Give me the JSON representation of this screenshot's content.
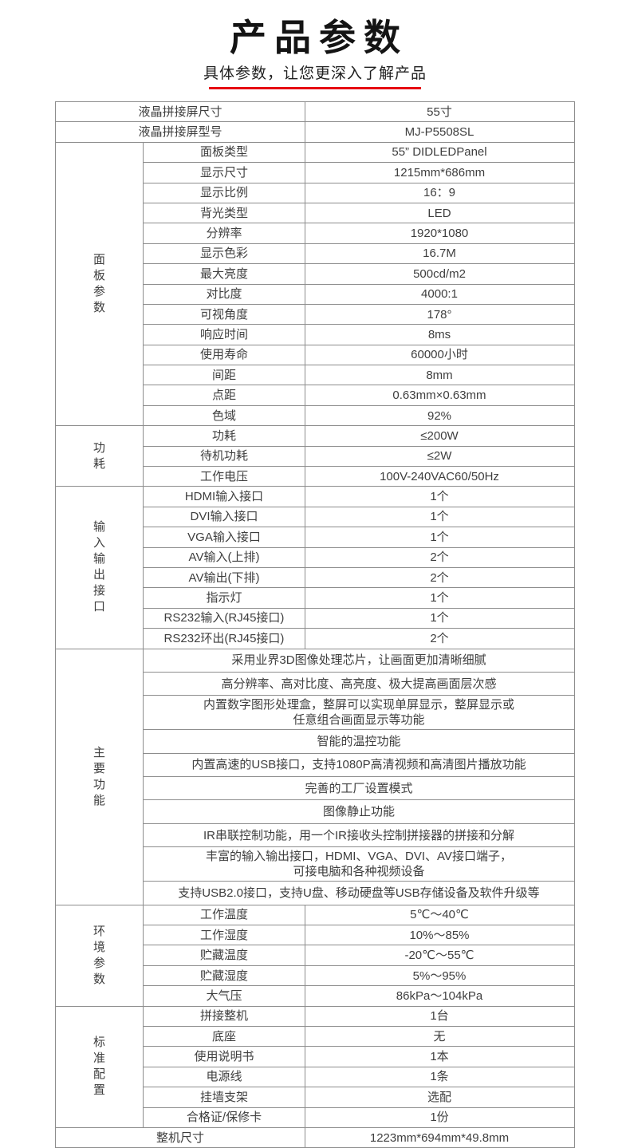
{
  "header": {
    "title": "产品参数",
    "subtitle": "具体参数，让您更深入了解产品",
    "underline_color": "#e60012"
  },
  "spec_table": {
    "border_color": "#8d8d8d",
    "text_color": "#3e3e3e",
    "top_rows": [
      {
        "label": "液晶拼接屏尺寸",
        "value": "55寸"
      },
      {
        "label": "液晶拼接屏型号",
        "value": "MJ-P5508SL"
      }
    ],
    "groups": [
      {
        "name": "面板参数",
        "rows": [
          {
            "label": "面板类型",
            "value": "55” DIDLEDPanel"
          },
          {
            "label": "显示尺寸",
            "value": "1215mm*686mm"
          },
          {
            "label": "显示比例",
            "value": "16：9"
          },
          {
            "label": "背光类型",
            "value": "LED"
          },
          {
            "label": "分辨率",
            "value": "1920*1080"
          },
          {
            "label": "显示色彩",
            "value": "16.7M"
          },
          {
            "label": "最大亮度",
            "value": "500cd/m2"
          },
          {
            "label": "对比度",
            "value": "4000:1"
          },
          {
            "label": "可视角度",
            "value": "178°"
          },
          {
            "label": "响应时间",
            "value": "8ms"
          },
          {
            "label": "使用寿命",
            "value": "60000小时"
          },
          {
            "label": "间距",
            "value": "8mm"
          },
          {
            "label": "点距",
            "value": "0.63mm×0.63mm"
          },
          {
            "label": "色域",
            "value": "92%"
          }
        ]
      },
      {
        "name": "功耗",
        "rows": [
          {
            "label": "功耗",
            "value": "≤200W"
          },
          {
            "label": "待机功耗",
            "value": "≤2W"
          },
          {
            "label": "工作电压",
            "value": "100V-240VAC60/50Hz"
          }
        ]
      },
      {
        "name": "输入输出接口",
        "rows": [
          {
            "label": "HDMI输入接口",
            "value": "1个"
          },
          {
            "label": "DVI输入接口",
            "value": "1个"
          },
          {
            "label": "VGA输入接口",
            "value": "1个"
          },
          {
            "label": "AV输入(上排)",
            "value": "2个"
          },
          {
            "label": "AV输出(下排)",
            "value": "2个"
          },
          {
            "label": "指示灯",
            "value": "1个"
          },
          {
            "label": "RS232输入(RJ45接口)",
            "value": "1个"
          },
          {
            "label": "RS232环出(RJ45接口)",
            "value": "2个"
          }
        ]
      },
      {
        "name": "主要功能",
        "features": [
          "采用业界3D图像处理芯片，让画面更加清晰细腻",
          "高分辨率、高对比度、高亮度、极大提高画面层次感",
          "内置数字图形处理盒，整屏可以实现单屏显示，整屏显示或\n任意组合画面显示等功能",
          "智能的温控功能",
          "内置高速的USB接口，支持1080P高清视频和高清图片播放功能",
          "完善的工厂设置模式",
          "图像静止功能",
          "IR串联控制功能，用一个IR接收头控制拼接器的拼接和分解",
          "丰富的输入输出接口，HDMI、VGA、DVI、AV接口端子，\n可接电脑和各种视频设备",
          "支持USB2.0接口，支持U盘、移动硬盘等USB存储设备及软件升级等"
        ]
      },
      {
        "name": "环境参数",
        "rows": [
          {
            "label": "工作温度",
            "value": "5℃～40℃"
          },
          {
            "label": "工作湿度",
            "value": "10%～85%"
          },
          {
            "label": "贮藏温度",
            "value": "-20℃～55℃"
          },
          {
            "label": "贮藏湿度",
            "value": "5%～95%"
          },
          {
            "label": "大气压",
            "value": "86kPa～104kPa"
          }
        ]
      },
      {
        "name": "标准配置",
        "rows": [
          {
            "label": "拼接整机",
            "value": "1台"
          },
          {
            "label": "底座",
            "value": "无"
          },
          {
            "label": "使用说明书",
            "value": "1本"
          },
          {
            "label": "电源线",
            "value": "1条"
          },
          {
            "label": "挂墙支架",
            "value": "选配"
          },
          {
            "label": "合格证/保修卡",
            "value": "1份"
          }
        ]
      }
    ],
    "bottom_row": {
      "label": "整机尺寸",
      "value": "1223mm*694mm*49.8mm"
    }
  }
}
